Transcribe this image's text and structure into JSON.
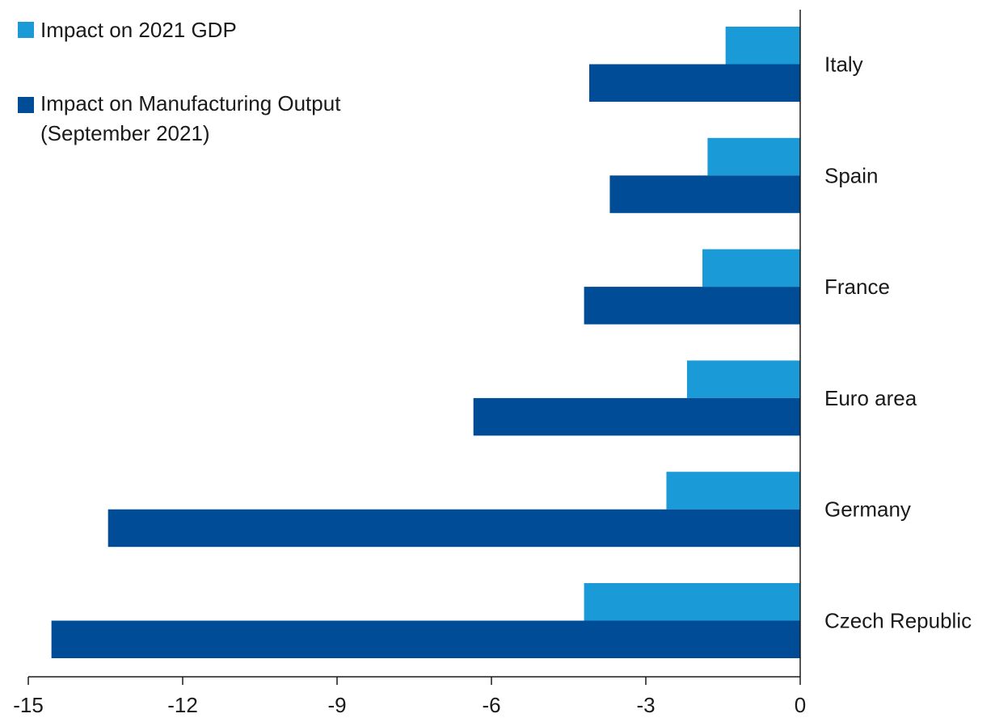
{
  "chart_data": {
    "type": "bar",
    "orientation": "horizontal",
    "title": "",
    "xlabel": "",
    "ylabel": "",
    "categories": [
      "Italy",
      "Spain",
      "France",
      "Euro area",
      "Germany",
      "Czech Republic"
    ],
    "series": [
      {
        "name": "Impact on 2021 GDP",
        "name_lines": [
          "Impact on 2021 GDP"
        ],
        "color": "#1a9ad6",
        "values": [
          -1.45,
          -1.8,
          -1.9,
          -2.2,
          -2.6,
          -4.2
        ]
      },
      {
        "name": "Impact on Manufacturing Output (September 2021)",
        "name_lines": [
          "Impact on Manufacturing Output",
          "(September 2021)"
        ],
        "color": "#004c97",
        "values": [
          -4.1,
          -3.7,
          -4.2,
          -6.35,
          -13.45,
          -14.55
        ]
      }
    ],
    "xlim": [
      -15,
      0
    ],
    "xticks": [
      -15,
      -12,
      -9,
      -6,
      -3,
      0
    ],
    "xtick_labels": [
      "-15",
      "-12",
      "-9",
      "-6",
      "-3",
      "0"
    ],
    "grid": false,
    "legend_position": "top-left"
  }
}
